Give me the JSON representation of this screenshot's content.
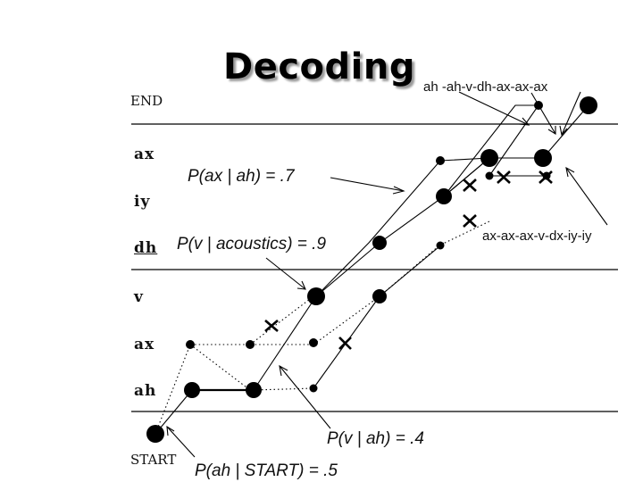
{
  "title": "Decoding",
  "end_label": "END",
  "start_label": "START",
  "states": [
    "ax",
    "iy",
    "dh",
    "v",
    "ax",
    "ah"
  ],
  "top_sequence": "ah -ah-v-dh-ax-ax-ax",
  "side_sequence": "ax-ax-ax-v-dx-iy-iy",
  "annotations": {
    "p_ax_ah": "P(ax | ah) = .7",
    "p_v_acoustics": "P(v | acoustics) = .9",
    "p_v_ah": "P(v | ah) = .4",
    "p_ah_start": "P(ah | START) = .5"
  }
}
